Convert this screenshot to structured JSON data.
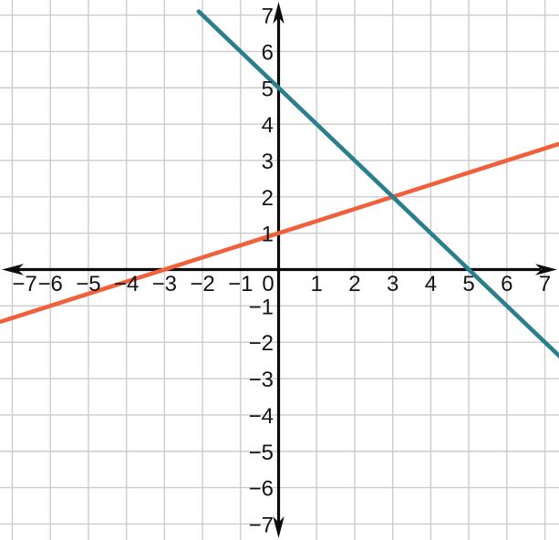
{
  "figure": {
    "background_color": "#ffffff",
    "grid_color": "#cccccc",
    "axis_color": "#0b0b0b",
    "label_color": "#141414"
  },
  "chart_data": {
    "type": "line",
    "title": "",
    "xlabel": "",
    "ylabel": "",
    "xlim": [
      -7.4,
      7.4
    ],
    "ylim": [
      -7.4,
      7.4
    ],
    "grid": true,
    "legend": "none",
    "x_ticks": [
      -7,
      -6,
      -5,
      -4,
      -3,
      -2,
      -1,
      1,
      2,
      3,
      4,
      5,
      6,
      7
    ],
    "x_tick_labels": [
      "−7",
      "−6",
      "−5",
      "−4",
      "−3",
      "−2",
      "−1",
      "1",
      "2",
      "3",
      "4",
      "5",
      "6",
      "7"
    ],
    "y_ticks": [
      -7,
      -6,
      -5,
      -4,
      -3,
      -2,
      -1,
      1,
      2,
      3,
      4,
      5,
      6,
      7
    ],
    "y_tick_labels": [
      "−7",
      "−6",
      "−5",
      "−4",
      "−3",
      "−2",
      "−1",
      "1",
      "2",
      "3",
      "4",
      "5",
      "6",
      "7"
    ],
    "origin_label": "0",
    "series": [
      {
        "name": "orange-line",
        "color": "#F0603C",
        "slope": 0.3333333,
        "y_intercept": 1,
        "x_intercept": -3,
        "x_range": [
          -7.3,
          7.35
        ],
        "points": [
          [
            -6,
            -1
          ],
          [
            -3,
            0
          ],
          [
            0,
            1
          ],
          [
            3,
            2
          ],
          [
            6,
            3
          ]
        ]
      },
      {
        "name": "teal-line",
        "color": "#2B7E8C",
        "slope": -1,
        "y_intercept": 5,
        "x_intercept": 5,
        "x_range": [
          -2.1,
          7.4
        ],
        "points": [
          [
            -2,
            7
          ],
          [
            0,
            5
          ],
          [
            3,
            2
          ],
          [
            5,
            0
          ],
          [
            7,
            -2
          ]
        ]
      }
    ],
    "intersection": [
      3,
      2
    ]
  }
}
